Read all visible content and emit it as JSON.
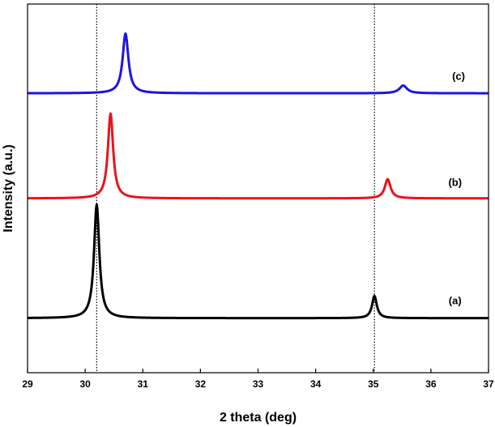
{
  "chart_data": {
    "type": "line",
    "title": "",
    "xlabel": "2 theta (deg)",
    "ylabel": "Intensity (a.u.)",
    "xlim": [
      29,
      37
    ],
    "ylim": [
      0,
      100
    ],
    "x_ticks": [
      "29",
      "30",
      "31",
      "32",
      "33",
      "34",
      "35",
      "36",
      "37"
    ],
    "y_ticks_shown": false,
    "grid": false,
    "reference_lines_x": [
      30.2,
      35.02
    ],
    "series": [
      {
        "name": "(a)",
        "label": "(a)",
        "color": "#000000",
        "baseline": 14.8,
        "label_x": 36.42,
        "label_offset": 3.8,
        "peaks": [
          {
            "center": 30.2,
            "height": 30.8,
            "width": 0.055
          },
          {
            "center": 35.02,
            "height": 6.0,
            "width": 0.05
          }
        ]
      },
      {
        "name": "(b)",
        "label": "(b)",
        "color": "#e8141b",
        "baseline": 47.3,
        "label_x": 36.42,
        "label_offset": 3.4,
        "peaks": [
          {
            "center": 30.44,
            "height": 23.0,
            "width": 0.055
          },
          {
            "center": 35.25,
            "height": 5.2,
            "width": 0.06
          }
        ]
      },
      {
        "name": "(c)",
        "label": "(c)",
        "color": "#1a14e6",
        "baseline": 75.8,
        "label_x": 36.48,
        "label_offset": 3.6,
        "peaks": [
          {
            "center": 30.7,
            "height": 16.2,
            "width": 0.06
          },
          {
            "center": 35.52,
            "height": 2.1,
            "width": 0.08
          }
        ]
      }
    ]
  }
}
